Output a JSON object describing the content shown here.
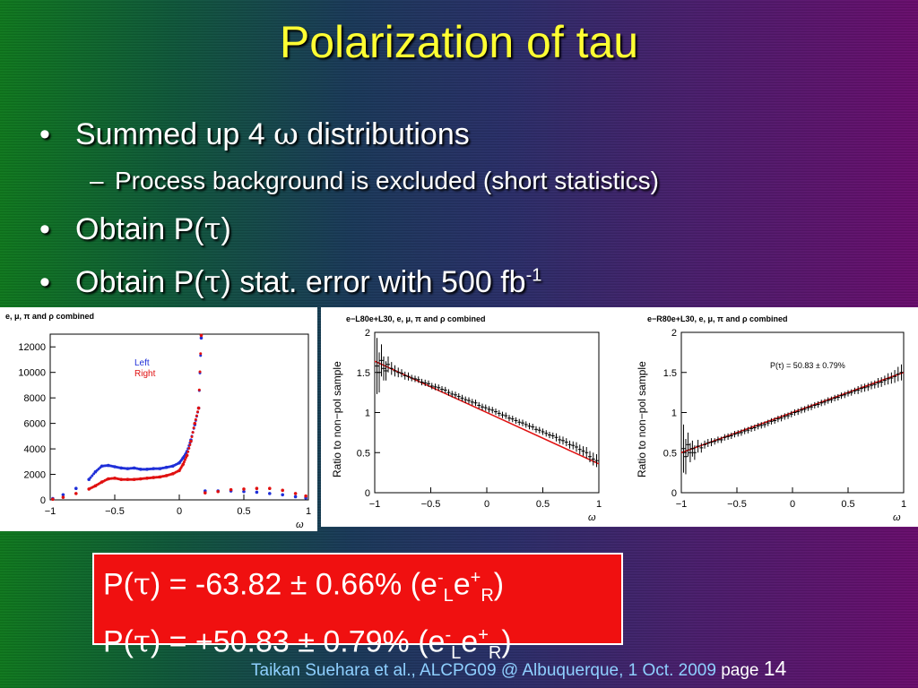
{
  "slide": {
    "title": "Polarization of tau",
    "bullets": [
      {
        "marker": "•",
        "text_before": "Summed up 4 ",
        "symbol": "ω",
        "text_after": " distributions"
      },
      {
        "marker": "–",
        "text": "Process background is excluded (short statistics)"
      },
      {
        "marker": "•",
        "text_before": "Obtain P(",
        "symbol": "τ",
        "text_after": ")"
      },
      {
        "marker": "•",
        "text_before": "Obtain P(",
        "symbol": "τ",
        "text_after": ") stat. error with 500 fb",
        "sup": "-1"
      }
    ],
    "result_box": {
      "line1": {
        "pre": "P(",
        "sym": "τ",
        "mid": ") = -63.82 ± 0.66% (e",
        "sup1": "-",
        "sub1": "L",
        "e2": "e",
        "sup2": "+",
        "sub2": "R",
        "post": ")"
      },
      "line2": {
        "pre": "P(",
        "sym": "τ",
        "mid": ") = +50.83 ± 0.79% (e",
        "sup1": "-",
        "sub1": "L",
        "e2": "e",
        "sup2": "+",
        "sub2": "R",
        "post": ")"
      }
    },
    "footer": {
      "credit": "Taikan Suehara et al., ALCPG09 @ Albuquerque, 1 Oct. 2009 ",
      "page_label": "page ",
      "page_number": "14"
    },
    "colors": {
      "title": "#ffff33",
      "box": "#f01010",
      "footer": "#8fd0ff",
      "left": "#1f2fd8",
      "right": "#e01010"
    }
  },
  "chart_data": [
    {
      "type": "scatter",
      "title": "e, μ, π and ρ combined",
      "xlabel": "ω",
      "ylabel": "",
      "xlim": [
        -1,
        1
      ],
      "ylim": [
        0,
        13000
      ],
      "xticks": [
        "−1",
        "−0.5",
        "0",
        "0.5",
        "1"
      ],
      "yticks": [
        "0",
        "2000",
        "4000",
        "6000",
        "8000",
        "10000",
        "12000"
      ],
      "legend": [
        "Left",
        "Right"
      ],
      "series": [
        {
          "name": "Left",
          "color": "#1f2fd8",
          "x": [
            -0.98,
            -0.9,
            -0.8,
            -0.7,
            -0.65,
            -0.6,
            -0.55,
            -0.5,
            -0.45,
            -0.4,
            -0.35,
            -0.3,
            -0.25,
            -0.2,
            -0.15,
            -0.1,
            -0.05,
            0,
            0.03,
            0.06,
            0.09,
            0.12,
            0.15,
            0.17,
            0.2,
            0.3,
            0.4,
            0.5,
            0.6,
            0.7,
            0.8,
            0.9,
            0.98
          ],
          "y": [
            100,
            400,
            900,
            1600,
            2200,
            2650,
            2700,
            2600,
            2500,
            2450,
            2500,
            2400,
            2400,
            2450,
            2450,
            2550,
            2650,
            2900,
            3300,
            3800,
            4700,
            5900,
            7200,
            12700,
            700,
            700,
            700,
            650,
            600,
            500,
            400,
            250,
            150
          ]
        },
        {
          "name": "Right",
          "color": "#e01010",
          "x": [
            -0.98,
            -0.9,
            -0.8,
            -0.7,
            -0.65,
            -0.6,
            -0.55,
            -0.5,
            -0.45,
            -0.4,
            -0.35,
            -0.3,
            -0.25,
            -0.2,
            -0.15,
            -0.1,
            -0.05,
            0,
            0.03,
            0.06,
            0.09,
            0.12,
            0.15,
            0.17,
            0.2,
            0.3,
            0.4,
            0.5,
            0.6,
            0.7,
            0.8,
            0.9,
            0.98
          ],
          "y": [
            50,
            200,
            500,
            850,
            1100,
            1400,
            1650,
            1700,
            1600,
            1600,
            1600,
            1650,
            1700,
            1750,
            1800,
            1900,
            2050,
            2300,
            2800,
            3500,
            4600,
            6000,
            7200,
            12900,
            550,
            650,
            800,
            850,
            900,
            900,
            750,
            500,
            300
          ]
        }
      ]
    },
    {
      "type": "scatter",
      "title": "e−L80e+L30, e, μ, π and ρ combined",
      "xlabel": "ω",
      "ylabel": "Ratio to non−pol sample",
      "xlim": [
        -1,
        1
      ],
      "ylim": [
        0,
        2
      ],
      "xticks": [
        "−1",
        "−0.5",
        "0",
        "0.5",
        "1"
      ],
      "yticks": [
        "0",
        "0.5",
        "1",
        "1.5",
        "2"
      ],
      "fit": {
        "x": [
          -1,
          1
        ],
        "y": [
          1.64,
          0.36
        ]
      },
      "x": [
        -0.98,
        -0.96,
        -0.94,
        -0.92,
        -0.9,
        -0.88,
        -0.85,
        -0.82,
        -0.79,
        -0.76,
        -0.73,
        -0.7,
        -0.67,
        -0.64,
        -0.61,
        -0.58,
        -0.55,
        -0.52,
        -0.49,
        -0.46,
        -0.43,
        -0.4,
        -0.37,
        -0.34,
        -0.31,
        -0.28,
        -0.25,
        -0.22,
        -0.19,
        -0.16,
        -0.13,
        -0.1,
        -0.07,
        -0.04,
        -0.01,
        0.02,
        0.05,
        0.08,
        0.11,
        0.14,
        0.17,
        0.2,
        0.23,
        0.26,
        0.29,
        0.32,
        0.35,
        0.38,
        0.41,
        0.44,
        0.47,
        0.5,
        0.53,
        0.56,
        0.59,
        0.62,
        0.65,
        0.68,
        0.71,
        0.74,
        0.77,
        0.8,
        0.83,
        0.86,
        0.89,
        0.92,
        0.95,
        0.98
      ],
      "y": [
        1.58,
        1.5,
        1.65,
        1.55,
        1.52,
        1.6,
        1.55,
        1.52,
        1.5,
        1.49,
        1.46,
        1.45,
        1.43,
        1.42,
        1.41,
        1.38,
        1.37,
        1.36,
        1.33,
        1.32,
        1.31,
        1.29,
        1.28,
        1.25,
        1.23,
        1.22,
        1.2,
        1.18,
        1.16,
        1.15,
        1.13,
        1.12,
        1.09,
        1.07,
        1.06,
        1.04,
        1.03,
        1.01,
        0.99,
        0.97,
        0.96,
        0.93,
        0.92,
        0.9,
        0.88,
        0.87,
        0.85,
        0.83,
        0.82,
        0.79,
        0.78,
        0.76,
        0.74,
        0.72,
        0.71,
        0.69,
        0.66,
        0.65,
        0.63,
        0.6,
        0.59,
        0.57,
        0.54,
        0.52,
        0.5,
        0.45,
        0.42,
        0.4
      ],
      "err": [
        0.35,
        0.25,
        0.2,
        0.15,
        0.12,
        0.1,
        0.08,
        0.07,
        0.06,
        0.05,
        0.05,
        0.05,
        0.04,
        0.04,
        0.04,
        0.04,
        0.04,
        0.04,
        0.04,
        0.04,
        0.04,
        0.04,
        0.04,
        0.04,
        0.04,
        0.04,
        0.04,
        0.04,
        0.04,
        0.04,
        0.04,
        0.04,
        0.04,
        0.04,
        0.04,
        0.04,
        0.04,
        0.04,
        0.04,
        0.04,
        0.04,
        0.04,
        0.04,
        0.04,
        0.04,
        0.04,
        0.04,
        0.04,
        0.04,
        0.04,
        0.04,
        0.04,
        0.04,
        0.04,
        0.04,
        0.05,
        0.05,
        0.05,
        0.05,
        0.05,
        0.05,
        0.06,
        0.06,
        0.06,
        0.07,
        0.07,
        0.08,
        0.08
      ]
    },
    {
      "type": "scatter",
      "title": "e−R80e+L30, e, μ, π and ρ combined",
      "xlabel": "ω",
      "ylabel": "Ratio to non−pol sample",
      "annotation": "P(τ) = 50.83 ± 0.79%",
      "xlim": [
        -1,
        1
      ],
      "ylim": [
        0,
        2
      ],
      "xticks": [
        "−1",
        "−0.5",
        "0",
        "0.5",
        "1"
      ],
      "yticks": [
        "0",
        "0.5",
        "1",
        "1.5",
        "2"
      ],
      "fit": {
        "x": [
          -1,
          1
        ],
        "y": [
          0.5,
          1.5
        ]
      },
      "x": [
        -0.98,
        -0.96,
        -0.94,
        -0.92,
        -0.9,
        -0.88,
        -0.85,
        -0.82,
        -0.79,
        -0.76,
        -0.73,
        -0.7,
        -0.67,
        -0.64,
        -0.61,
        -0.58,
        -0.55,
        -0.52,
        -0.49,
        -0.46,
        -0.43,
        -0.4,
        -0.37,
        -0.34,
        -0.31,
        -0.28,
        -0.25,
        -0.22,
        -0.19,
        -0.16,
        -0.13,
        -0.1,
        -0.07,
        -0.04,
        -0.01,
        0.02,
        0.05,
        0.08,
        0.11,
        0.14,
        0.17,
        0.2,
        0.23,
        0.26,
        0.29,
        0.32,
        0.35,
        0.38,
        0.41,
        0.44,
        0.47,
        0.5,
        0.53,
        0.56,
        0.59,
        0.62,
        0.65,
        0.68,
        0.71,
        0.74,
        0.77,
        0.8,
        0.83,
        0.86,
        0.89,
        0.92,
        0.95,
        0.98
      ],
      "y": [
        0.55,
        0.45,
        0.6,
        0.5,
        0.55,
        0.5,
        0.58,
        0.56,
        0.6,
        0.62,
        0.63,
        0.64,
        0.66,
        0.66,
        0.69,
        0.7,
        0.71,
        0.73,
        0.74,
        0.75,
        0.77,
        0.78,
        0.8,
        0.81,
        0.83,
        0.84,
        0.85,
        0.87,
        0.89,
        0.9,
        0.92,
        0.93,
        0.95,
        0.96,
        0.98,
        1.0,
        1.01,
        1.03,
        1.04,
        1.06,
        1.07,
        1.09,
        1.1,
        1.12,
        1.13,
        1.15,
        1.16,
        1.18,
        1.19,
        1.21,
        1.22,
        1.24,
        1.25,
        1.27,
        1.28,
        1.3,
        1.31,
        1.32,
        1.34,
        1.35,
        1.37,
        1.38,
        1.4,
        1.42,
        1.43,
        1.45,
        1.48,
        1.5
      ],
      "err": [
        0.3,
        0.22,
        0.15,
        0.12,
        0.1,
        0.09,
        0.08,
        0.06,
        0.05,
        0.05,
        0.05,
        0.04,
        0.04,
        0.04,
        0.04,
        0.04,
        0.04,
        0.04,
        0.04,
        0.04,
        0.04,
        0.04,
        0.04,
        0.04,
        0.04,
        0.04,
        0.04,
        0.04,
        0.04,
        0.04,
        0.04,
        0.04,
        0.04,
        0.04,
        0.04,
        0.04,
        0.04,
        0.04,
        0.04,
        0.04,
        0.04,
        0.04,
        0.04,
        0.04,
        0.04,
        0.04,
        0.04,
        0.04,
        0.04,
        0.04,
        0.04,
        0.04,
        0.04,
        0.04,
        0.05,
        0.05,
        0.05,
        0.05,
        0.05,
        0.05,
        0.06,
        0.06,
        0.06,
        0.07,
        0.07,
        0.08,
        0.09,
        0.1
      ]
    }
  ]
}
